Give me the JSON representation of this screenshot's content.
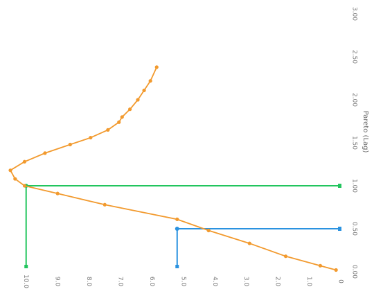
{
  "chart_data": {
    "type": "line",
    "title": "",
    "xlabel": "",
    "ylabel": "Pareto (Lag)",
    "x_ticks": [
      "0.00",
      "0.50",
      "1.00",
      "1.50",
      "2.00",
      "2.50",
      "3.00"
    ],
    "y_ticks": [
      "0",
      "1.0",
      "2.0",
      "3.0",
      "4.0",
      "5.0",
      "6.0",
      "7.0",
      "8.0",
      "9.0",
      "10.0"
    ],
    "xlim": [
      0,
      3.0
    ],
    "ylim": [
      0,
      10.5
    ],
    "grid": false,
    "series": [
      {
        "color": "#f29a2e",
        "points": [
          {
            "x": 0.02,
            "y": 0.15
          },
          {
            "x": 0.07,
            "y": 0.65
          },
          {
            "x": 0.18,
            "y": 1.75
          },
          {
            "x": 0.33,
            "y": 2.9
          },
          {
            "x": 0.48,
            "y": 4.2
          },
          {
            "x": 0.61,
            "y": 5.2
          },
          {
            "x": 0.78,
            "y": 7.5
          },
          {
            "x": 0.91,
            "y": 9.0
          },
          {
            "x": 1.0,
            "y": 10.05
          },
          {
            "x": 1.08,
            "y": 10.35
          },
          {
            "x": 1.18,
            "y": 10.5
          },
          {
            "x": 1.28,
            "y": 10.05
          },
          {
            "x": 1.38,
            "y": 9.4
          },
          {
            "x": 1.48,
            "y": 8.6
          },
          {
            "x": 1.56,
            "y": 7.95
          },
          {
            "x": 1.65,
            "y": 7.4
          },
          {
            "x": 1.74,
            "y": 7.05
          },
          {
            "x": 1.8,
            "y": 6.95
          },
          {
            "x": 1.89,
            "y": 6.7
          },
          {
            "x": 2.0,
            "y": 6.45
          },
          {
            "x": 2.11,
            "y": 6.25
          },
          {
            "x": 2.22,
            "y": 6.05
          },
          {
            "x": 2.38,
            "y": 5.85
          }
        ]
      }
    ],
    "reference_lines": [
      {
        "color": "#22c55e",
        "x": 1.0,
        "y": 10.0
      },
      {
        "color": "#2a92e0",
        "x": 0.5,
        "y": 5.2
      }
    ]
  }
}
